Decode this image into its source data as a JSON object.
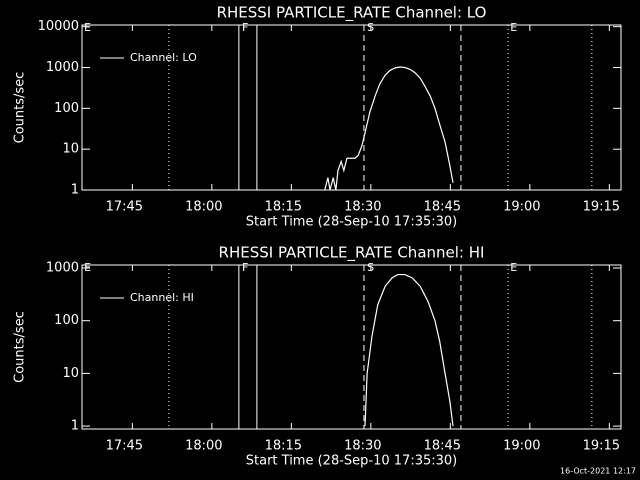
{
  "chart_data": [
    {
      "type": "line",
      "title": "RHESSI PARTICLE_RATE Channel: LO",
      "xlabel": "Start Time (28-Sep-10 17:35:30)",
      "ylabel": "Counts/sec",
      "xlim": [
        0,
        101.7
      ],
      "xticks": [
        {
          "value": 9.5,
          "label": "17:45"
        },
        {
          "value": 24.5,
          "label": "18:00"
        },
        {
          "value": 39.5,
          "label": "18:15"
        },
        {
          "value": 54.5,
          "label": "18:30"
        },
        {
          "value": 69.5,
          "label": "18:45"
        },
        {
          "value": 84.5,
          "label": "19:00"
        },
        {
          "value": 99.5,
          "label": "19:15"
        }
      ],
      "ylim": [
        1,
        11000
      ],
      "yticks": [
        1,
        10,
        100,
        1000,
        10000
      ],
      "ylog": true,
      "vlines": [
        {
          "x": 16.4,
          "style": "dotted"
        },
        {
          "x": 29.6,
          "style": "solid"
        },
        {
          "x": 33.0,
          "style": "solid"
        },
        {
          "x": 53.2,
          "style": "dashed"
        },
        {
          "x": 71.5,
          "style": "dashed"
        },
        {
          "x": 80.4,
          "style": "dotted"
        },
        {
          "x": 96.2,
          "style": "dotted"
        }
      ],
      "annotations": [
        {
          "text": "E",
          "x": 0.4
        },
        {
          "text": "F",
          "x": 30.2
        },
        {
          "text": "S",
          "x": 53.8
        },
        {
          "text": "E",
          "x": 80.8
        }
      ],
      "series": [
        {
          "name": "Channel: LO",
          "color": "#ffffff",
          "x": [
            45.8,
            46.4,
            46.8,
            47.4,
            47.9,
            48.3,
            48.9,
            49.4,
            50.0,
            50.6,
            51.5,
            52.1,
            52.8,
            53.4,
            54.3,
            55.3,
            56.2,
            57.2,
            58.1,
            59.1,
            60.0,
            60.9,
            61.9,
            62.8,
            63.8,
            64.7,
            65.7,
            66.6,
            67.5,
            68.5,
            69.4,
            70.0
          ],
          "values": [
            1,
            2,
            1,
            2,
            1,
            3,
            5,
            3,
            6,
            6,
            6,
            7,
            12,
            25,
            80,
            200,
            400,
            650,
            850,
            980,
            1030,
            1000,
            900,
            750,
            550,
            350,
            200,
            100,
            40,
            15,
            4,
            1.5
          ]
        }
      ],
      "legend": "upper left"
    },
    {
      "type": "line",
      "title": "RHESSI PARTICLE_RATE Channel: HI",
      "xlabel": "Start Time (28-Sep-10 17:35:30)",
      "ylabel": "Counts/sec",
      "xlim": [
        0,
        101.7
      ],
      "xticks": [
        {
          "value": 9.5,
          "label": "17:45"
        },
        {
          "value": 24.5,
          "label": "18:00"
        },
        {
          "value": 39.5,
          "label": "18:15"
        },
        {
          "value": 54.5,
          "label": "18:30"
        },
        {
          "value": 69.5,
          "label": "18:45"
        },
        {
          "value": 84.5,
          "label": "19:00"
        },
        {
          "value": 99.5,
          "label": "19:15"
        }
      ],
      "ylim": [
        0.88,
        1140
      ],
      "yticks": [
        1,
        10,
        100,
        1000
      ],
      "ylog": true,
      "vlines": [
        {
          "x": 16.4,
          "style": "dotted"
        },
        {
          "x": 29.6,
          "style": "solid"
        },
        {
          "x": 33.0,
          "style": "solid"
        },
        {
          "x": 53.2,
          "style": "dashed"
        },
        {
          "x": 71.5,
          "style": "dashed"
        },
        {
          "x": 80.4,
          "style": "dotted"
        },
        {
          "x": 96.2,
          "style": "dotted"
        }
      ],
      "annotations": [
        {
          "text": "E",
          "x": 0.4
        },
        {
          "text": "F",
          "x": 30.2
        },
        {
          "text": "S",
          "x": 53.8
        },
        {
          "text": "E",
          "x": 80.8
        }
      ],
      "series": [
        {
          "name": "Channel: HI",
          "color": "#ffffff",
          "x": [
            53.4,
            53.8,
            54.7,
            55.8,
            57.2,
            58.5,
            59.6,
            60.9,
            62.3,
            63.8,
            65.3,
            66.6,
            67.5,
            68.5,
            69.4,
            70.0
          ],
          "values": [
            1,
            10,
            50,
            200,
            450,
            650,
            750,
            750,
            650,
            450,
            230,
            100,
            40,
            10,
            3,
            1
          ]
        }
      ],
      "legend": "upper left"
    }
  ],
  "footer": "16-Oct-2021 12:17"
}
